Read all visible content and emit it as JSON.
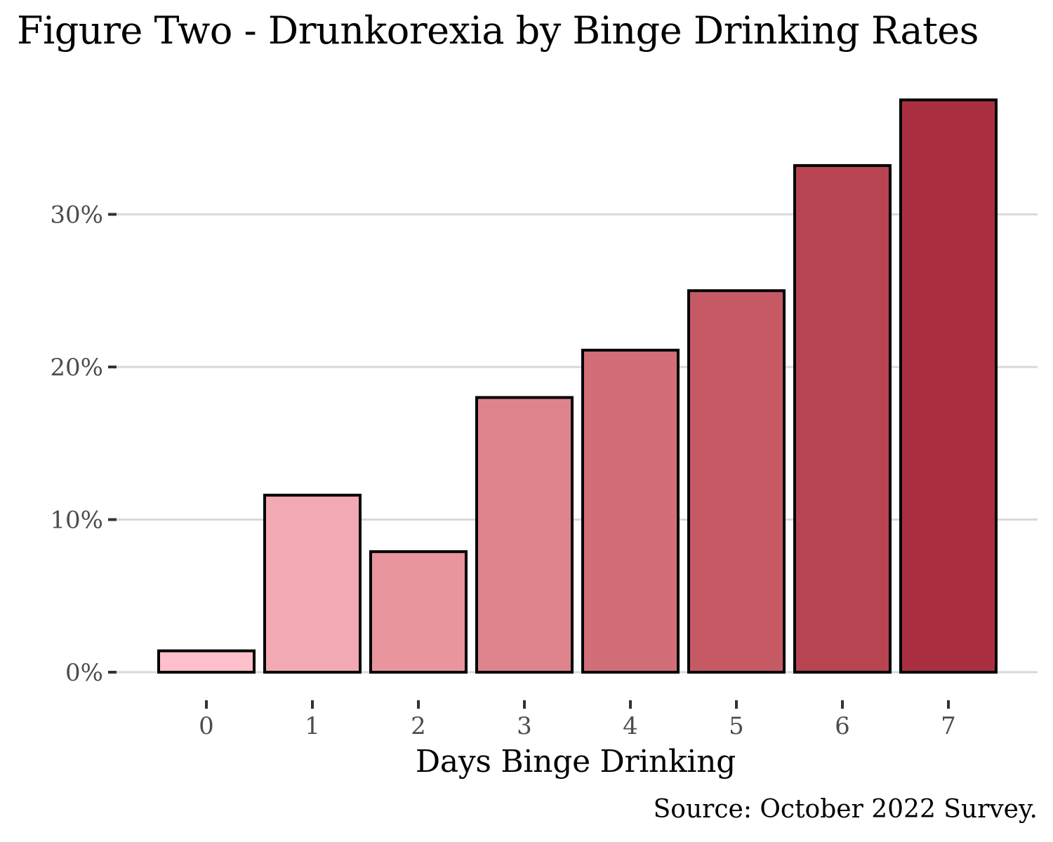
{
  "chart_data": {
    "type": "bar",
    "title": "Figure Two - Drunkorexia by Binge Drinking Rates",
    "xlabel": "Days Binge Drinking",
    "ylabel": "",
    "caption": "Source: October 2022 Survey.",
    "categories": [
      "0",
      "1",
      "2",
      "3",
      "4",
      "5",
      "6",
      "7"
    ],
    "values": [
      1.4,
      11.6,
      7.9,
      18.0,
      21.1,
      25.0,
      33.2,
      37.5
    ],
    "ylim": [
      0,
      40
    ],
    "yticks": [
      0,
      10,
      20,
      30
    ],
    "ytick_labels": [
      "0%",
      "10%",
      "20%",
      "30%"
    ],
    "bar_colors": [
      "#ffc0cb",
      "#f2a9b3",
      "#e8959e",
      "#de838b",
      "#d26e77",
      "#c55a64",
      "#b84452",
      "#aa2f40"
    ],
    "grid": true,
    "legend": "none"
  }
}
